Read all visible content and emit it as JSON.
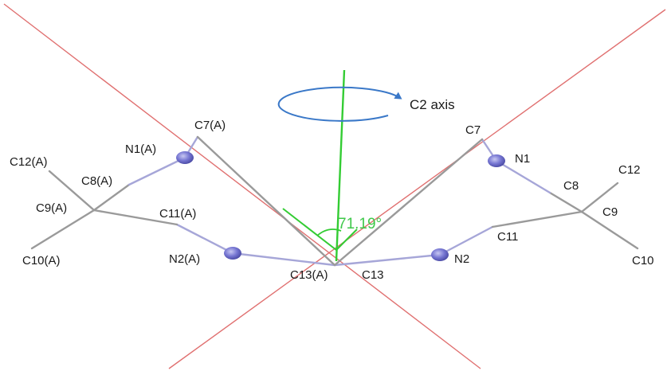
{
  "colors": {
    "plane_line": "#e07070",
    "c2_axis": "#33cc33",
    "rotation_arrow": "#3a78c8",
    "bond": "#9a9a9a",
    "n_bond": "#a6a6d8",
    "nitrogen": "#7676d2",
    "angle_text": "#3ec84a"
  },
  "axis": {
    "label": "C2 axis"
  },
  "angle": {
    "label": "71.19°"
  },
  "atoms": {
    "c7a": "C7(A)",
    "n1a": "N1(A)",
    "c12a": "C12(A)",
    "c8a": "C8(A)",
    "c9a": "C9(A)",
    "c11a": "C11(A)",
    "c10a": "C10(A)",
    "n2a": "N2(A)",
    "c13a": "C13(A)",
    "c13": "C13",
    "n2": "N2",
    "c11": "C11",
    "c10": "C10",
    "c9": "C9",
    "c8": "C8",
    "c12": "C12",
    "n1": "N1",
    "c7": "C7"
  }
}
